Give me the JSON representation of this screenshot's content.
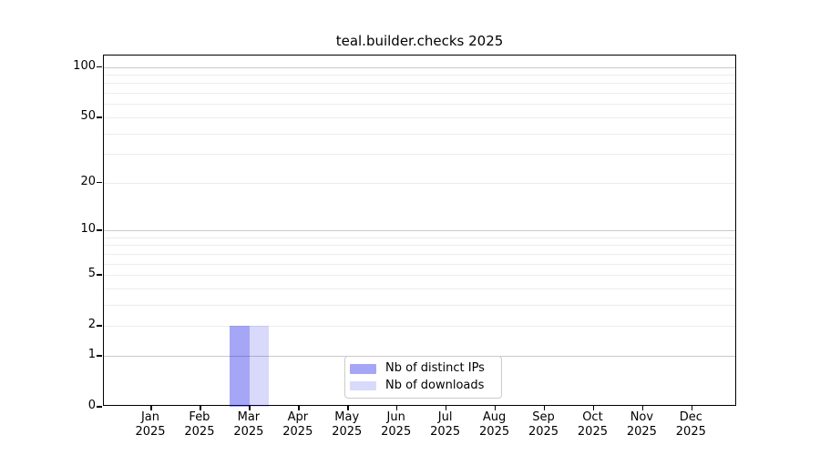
{
  "chart_data": {
    "type": "bar",
    "title": "teal.builder.checks 2025",
    "categories": [
      "Jan 2025",
      "Feb 2025",
      "Mar 2025",
      "Apr 2025",
      "May 2025",
      "Jun 2025",
      "Jul 2025",
      "Aug 2025",
      "Sep 2025",
      "Oct 2025",
      "Nov 2025",
      "Dec 2025"
    ],
    "series": [
      {
        "name": "Nb of distinct IPs",
        "values": [
          0,
          0,
          2,
          0,
          0,
          0,
          0,
          0,
          0,
          0,
          0,
          0
        ],
        "color": "rgba(0,0,230,0.35)",
        "approx_hex": "#a7a7f6"
      },
      {
        "name": "Nb of downloads",
        "values": [
          0,
          0,
          2,
          0,
          0,
          0,
          0,
          0,
          0,
          0,
          0,
          0
        ],
        "color": "rgba(0,0,230,0.15)",
        "approx_hex": "#d9d9fb"
      }
    ],
    "xlabel": "",
    "ylabel": "",
    "y_axis": {
      "scale": "log10(1+x)",
      "ylim": [
        0,
        117
      ],
      "ticks": [
        0,
        1,
        2,
        5,
        10,
        20,
        50,
        100
      ],
      "major_gridlines": [
        1,
        10,
        100
      ],
      "minor_gridlines": [
        2,
        3,
        4,
        5,
        6,
        7,
        8,
        9,
        20,
        30,
        40,
        50,
        60,
        70,
        80,
        90
      ]
    },
    "grid": true,
    "legend": {
      "position": "bottom-center",
      "entries": [
        {
          "label": "Nb of distinct IPs",
          "color": "rgba(0,0,230,0.35)"
        },
        {
          "label": "Nb of downloads",
          "color": "rgba(0,0,230,0.15)"
        }
      ]
    },
    "colors": {
      "grid_major": "#c9c9c9",
      "grid_minor": "#ececec",
      "axis": "#000000",
      "legend_border": "#cccccc",
      "background": "#ffffff"
    }
  }
}
